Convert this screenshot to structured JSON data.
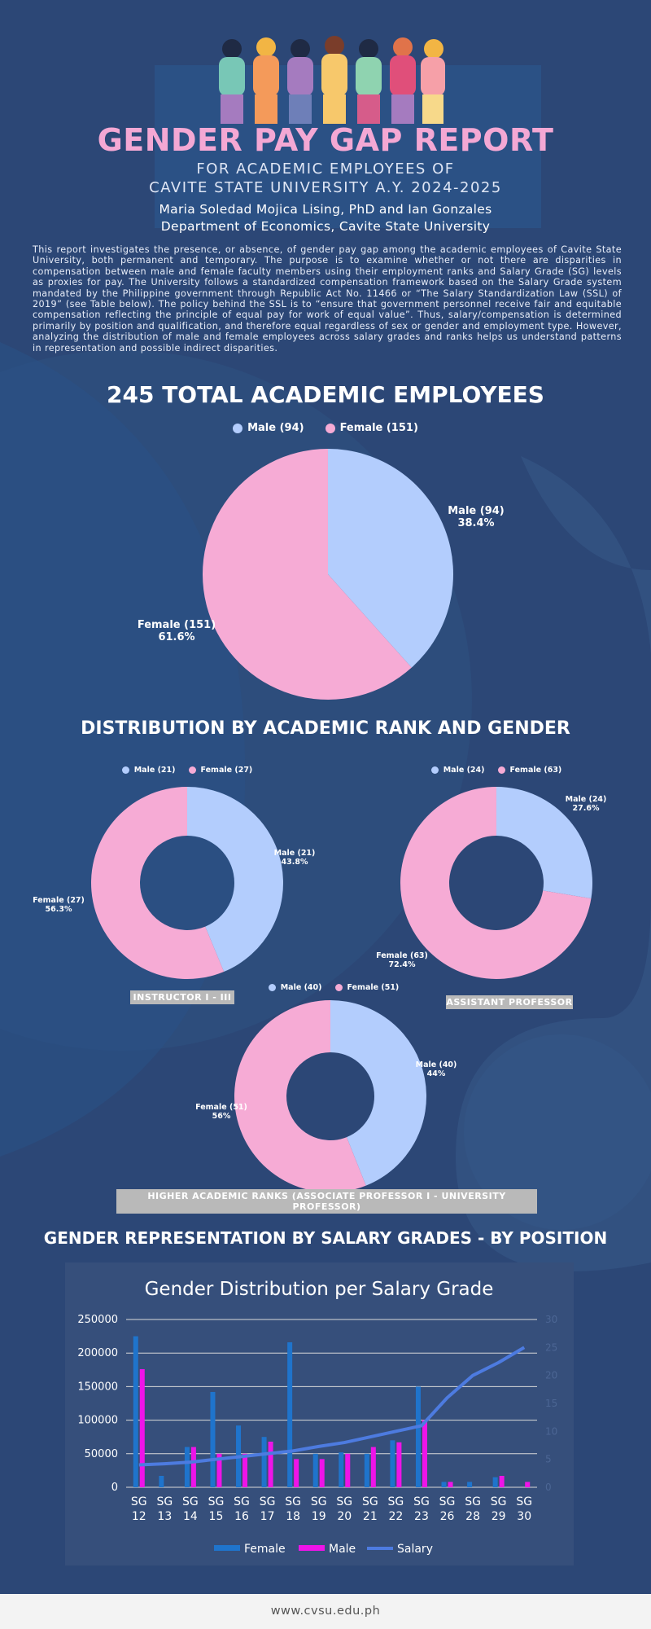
{
  "header": {
    "title": "GENDER PAY GAP REPORT",
    "subtitle_line1": "FOR ACADEMIC EMPLOYEES OF",
    "subtitle_line2": "CAVITE STATE UNIVERSITY A.Y. 2024-2025",
    "authors": "Maria Soledad Mojica Lising, PhD and Ian Gonzales",
    "department": "Department of Economics, Cavite State University"
  },
  "intro": "This report investigates the presence, or absence, of gender pay gap among the academic employees of Cavite State University, both permanent and temporary. The purpose is to examine whether or not there are disparities in compensation between male and female faculty members using their employment ranks and Salary Grade (SG) levels as proxies for pay. The University follows a standardized compensation framework based on the Salary Grade system mandated by the Philippine government through Republic Act No. 11466 or “The Salary Standardization Law (SSL) of 2019” (see Table below). The policy behind the SSL is to “ensure that government personnel receive fair and equitable compensation reflecting the principle of equal pay for work of equal value”. Thus, salary/compensation is determined primarily by position and qualification, and therefore equal regardless of sex or gender and employment type. However, analyzing the distribution of male and female employees across salary grades and ranks helps us understand patterns in representation and possible indirect disparities.",
  "colors": {
    "male": "#b3cdfd",
    "female": "#f6abd5",
    "background": "#2c4776",
    "bar_female": "#1f74cc",
    "bar_male": "#ee14e8",
    "salary_line": "#4d7be0"
  },
  "sections": {
    "total": "245 TOTAL ACADEMIC EMPLOYEES",
    "rank": "DISTRIBUTION BY ACADEMIC RANK AND GENDER",
    "salary": "GENDER REPRESENTATION BY SALARY GRADES - BY POSITION"
  },
  "chart_data": [
    {
      "type": "pie",
      "labels": [
        "Male (94)",
        "Female (151)"
      ],
      "values": [
        94,
        151
      ],
      "slice_labels": [
        [
          "Male (94)",
          "38.4%"
        ],
        [
          "Female (151)",
          "61.6%"
        ]
      ],
      "legend": "top-center"
    },
    {
      "type": "pie",
      "labels": [
        "Male (21)",
        "Female (27)"
      ],
      "values": [
        21,
        27
      ],
      "slice_labels": [
        [
          "Male (21)",
          "43.8%"
        ],
        [
          "Female (27)",
          "56.3%"
        ]
      ],
      "caption": "INSTRUCTOR I - III"
    },
    {
      "type": "pie",
      "labels": [
        "Male (24)",
        "Female (63)"
      ],
      "values": [
        24,
        63
      ],
      "slice_labels": [
        [
          "Male (24)",
          "27.6%"
        ],
        [
          "Female (63)",
          "72.4%"
        ]
      ],
      "caption": "ASSISTANT PROFESSOR"
    },
    {
      "type": "pie",
      "labels": [
        "Male (40)",
        "Female (51)"
      ],
      "values": [
        40,
        51
      ],
      "slice_labels": [
        [
          "Male (40)",
          "44%"
        ],
        [
          "Female (51)",
          "56%"
        ]
      ],
      "caption": "HIGHER ACADEMIC RANKS (ASSOCIATE PROFESSOR I - UNIVERSITY PROFESSOR)"
    },
    {
      "type": "bar",
      "title": "Gender Distribution per Salary Grade",
      "categories": [
        [
          "SG",
          "12"
        ],
        [
          "SG",
          "13"
        ],
        [
          "SG",
          "14"
        ],
        [
          "SG",
          "15"
        ],
        [
          "SG",
          "16"
        ],
        [
          "SG",
          "17"
        ],
        [
          "SG",
          "18"
        ],
        [
          "SG",
          "19"
        ],
        [
          "SG",
          "20"
        ],
        [
          "SG",
          "21"
        ],
        [
          "SG",
          "22"
        ],
        [
          "SG",
          "23"
        ],
        [
          "SG",
          "26"
        ],
        [
          "SG",
          "28"
        ],
        [
          "SG",
          "29"
        ],
        [
          "SG",
          "30"
        ]
      ],
      "series": [
        {
          "name": "Female",
          "values": [
            225000,
            17000,
            60000,
            142000,
            92000,
            75000,
            216000,
            50000,
            52000,
            50000,
            70000,
            150000,
            8000,
            8000,
            15000,
            0
          ]
        },
        {
          "name": "Male",
          "values": [
            176000,
            0,
            60000,
            50000,
            50000,
            68000,
            42000,
            42000,
            50000,
            60000,
            67000,
            100000,
            8000,
            0,
            17000,
            8000
          ]
        },
        {
          "name": "Salary",
          "axis": "right",
          "values": [
            4,
            4.2,
            4.5,
            5,
            5.5,
            6,
            6.5,
            7.3,
            8,
            9,
            10,
            11,
            16,
            20,
            22.3,
            25
          ]
        }
      ],
      "ylim": [
        0,
        250000
      ],
      "yticks": [
        "250000",
        "200000",
        "150000",
        "100000",
        "50000",
        "0"
      ],
      "y2lim": [
        0,
        30
      ],
      "y2ticks": [
        "30",
        "25",
        "20",
        "15",
        "10",
        "5",
        "0"
      ],
      "grid": true,
      "legend": "bottom-center"
    }
  ],
  "footer": "www.cvsu.edu.ph"
}
